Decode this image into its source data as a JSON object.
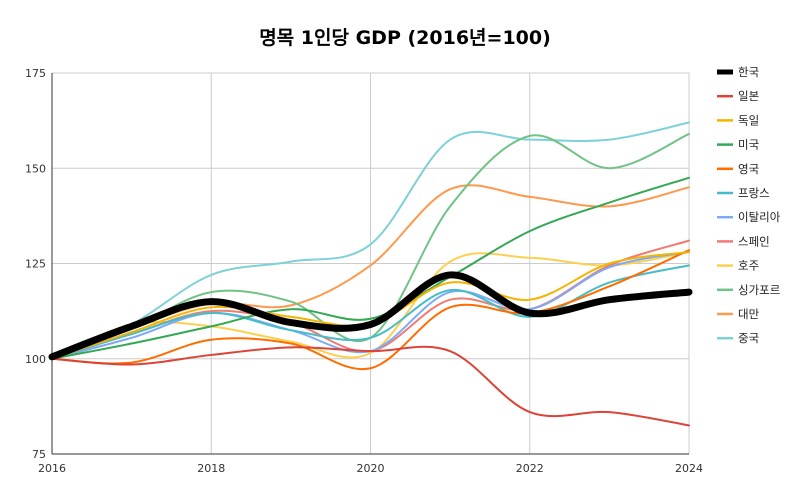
{
  "chart_data": {
    "type": "line",
    "title": "명목 1인당 GDP (2016년=100)",
    "xlabel": "",
    "ylabel": "",
    "x": [
      2016,
      2017,
      2018,
      2019,
      2020,
      2021,
      2022,
      2023,
      2024
    ],
    "xticks": [
      "2016",
      "2018",
      "2020",
      "2022",
      "2024"
    ],
    "xlim": [
      2016,
      2024
    ],
    "yticks": [
      "75",
      "100",
      "125",
      "150",
      "175"
    ],
    "ylim": [
      75,
      175
    ],
    "grid": true,
    "legend_position": "right",
    "series": [
      {
        "name": "한국",
        "color": "#000000",
        "emphasis": true,
        "values": [
          100.5,
          108.5,
          115,
          109.5,
          109,
          122,
          112,
          115.5,
          117.5
        ]
      },
      {
        "name": "일본",
        "color": "#db4437",
        "values": [
          100,
          98.5,
          101,
          103,
          102,
          102,
          86,
          86,
          82.5
        ]
      },
      {
        "name": "독일",
        "color": "#f4b400",
        "values": [
          100,
          107,
          113.5,
          111,
          109,
          120,
          115.5,
          125,
          128
        ]
      },
      {
        "name": "미국",
        "color": "#34a853",
        "values": [
          100,
          104,
          108.5,
          113,
          110.5,
          121.5,
          133.5,
          141,
          147.5
        ]
      },
      {
        "name": "영국",
        "color": "#ff6d01",
        "values": [
          100,
          99,
          105,
          104,
          97.5,
          113.5,
          112,
          119,
          128.5
        ]
      },
      {
        "name": "프랑스",
        "color": "#46bdc6",
        "values": [
          100,
          106.5,
          112,
          107.5,
          105.5,
          118,
          111,
          120,
          124.5
        ]
      },
      {
        "name": "이탈리아",
        "color": "#7baaf7",
        "values": [
          100,
          105.5,
          112,
          107.5,
          102,
          117.5,
          113,
          124,
          128
        ]
      },
      {
        "name": "스페인",
        "color": "#f07b72",
        "values": [
          100,
          106.5,
          112.5,
          109.5,
          102,
          115.5,
          113,
          124.5,
          131
        ]
      },
      {
        "name": "호주",
        "color": "#fcd04f",
        "values": [
          100,
          109,
          108.5,
          104.5,
          101.5,
          125.5,
          126.5,
          124.5,
          128
        ]
      },
      {
        "name": "싱가포르",
        "color": "#71c287",
        "values": [
          100,
          108,
          117.5,
          115,
          105.5,
          140,
          158.5,
          150,
          159
        ]
      },
      {
        "name": "대만",
        "color": "#ff994d",
        "values": [
          100,
          108,
          114.5,
          114,
          124.5,
          144.5,
          142.5,
          140,
          145
        ]
      },
      {
        "name": "중국",
        "color": "#7ed1d7",
        "values": [
          100,
          109,
          122,
          125.5,
          130,
          157.5,
          157.5,
          157.5,
          162
        ]
      }
    ]
  }
}
